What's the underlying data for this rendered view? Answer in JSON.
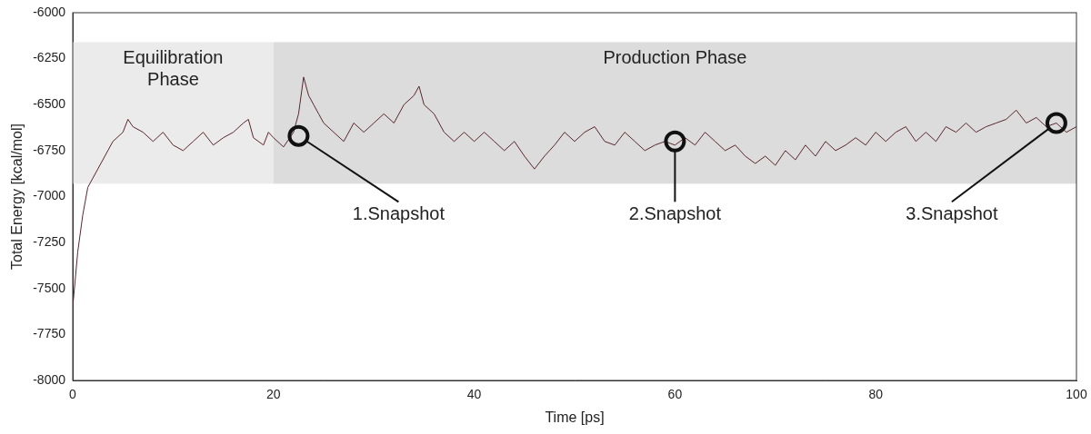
{
  "chart_data": {
    "type": "line",
    "x_label": "Time [ps]",
    "y_label": "Total Energy [kcal/mol]",
    "color": "#5a2630",
    "grid": false,
    "xlim": [
      0,
      100
    ],
    "xticks": [
      0,
      20,
      40,
      60,
      80,
      100
    ],
    "ylim": [
      -8000,
      -6000
    ],
    "yticks": [
      -8000,
      -7750,
      -7500,
      -7250,
      -7000,
      -6750,
      -6500,
      -6250,
      -6000
    ],
    "x": [
      0,
      0.5,
      1,
      1.5,
      2,
      2.5,
      3,
      3.5,
      4,
      5,
      5.5,
      6,
      7,
      8,
      9,
      10,
      11,
      12,
      13,
      14,
      15,
      16,
      17,
      17.5,
      18,
      19,
      19.5,
      20,
      21,
      22,
      22.5,
      23,
      23.5,
      24,
      24.5,
      25,
      26,
      27,
      28,
      29,
      30,
      31,
      32,
      33,
      34,
      34.5,
      35,
      36,
      37,
      38,
      39,
      40,
      41,
      42,
      43,
      44,
      45,
      46,
      47,
      48,
      49,
      50,
      51,
      52,
      53,
      54,
      55,
      56,
      57,
      58,
      59,
      60,
      61,
      62,
      63,
      64,
      65,
      66,
      67,
      68,
      69,
      70,
      71,
      72,
      73,
      74,
      75,
      76,
      77,
      78,
      79,
      80,
      81,
      82,
      83,
      84,
      85,
      86,
      87,
      88,
      89,
      90,
      91,
      92,
      93,
      94,
      95,
      96,
      97,
      98,
      99,
      100
    ],
    "values": [
      -7600,
      -7300,
      -7100,
      -6950,
      -6900,
      -6850,
      -6800,
      -6750,
      -6700,
      -6650,
      -6580,
      -6620,
      -6650,
      -6700,
      -6650,
      -6720,
      -6750,
      -6700,
      -6650,
      -6720,
      -6680,
      -6650,
      -6600,
      -6580,
      -6680,
      -6720,
      -6650,
      -6680,
      -6730,
      -6650,
      -6550,
      -6350,
      -6450,
      -6500,
      -6550,
      -6600,
      -6650,
      -6700,
      -6600,
      -6650,
      -6600,
      -6550,
      -6600,
      -6500,
      -6450,
      -6400,
      -6500,
      -6550,
      -6650,
      -6700,
      -6650,
      -6700,
      -6650,
      -6700,
      -6750,
      -6700,
      -6780,
      -6850,
      -6780,
      -6720,
      -6650,
      -6700,
      -6650,
      -6620,
      -6700,
      -6720,
      -6650,
      -6700,
      -6750,
      -6720,
      -6700,
      -6720,
      -6680,
      -6720,
      -6650,
      -6700,
      -6750,
      -6720,
      -6780,
      -6820,
      -6780,
      -6830,
      -6750,
      -6800,
      -6720,
      -6780,
      -6700,
      -6750,
      -6720,
      -6680,
      -6720,
      -6650,
      -6700,
      -6650,
      -6620,
      -6700,
      -6650,
      -6700,
      -6620,
      -6650,
      -6600,
      -6650,
      -6620,
      -6600,
      -6580,
      -6530,
      -6600,
      -6570,
      -6620,
      -6600,
      -6650,
      -6620
    ],
    "regions": [
      {
        "label": "Equilibration Phase",
        "x": [
          0,
          20
        ],
        "y": [
          -6930,
          -6160
        ],
        "color": "#ebebeb"
      },
      {
        "label": "Production Phase",
        "x": [
          20,
          100
        ],
        "y": [
          -6930,
          -6160
        ],
        "color": "#dcdcdc"
      }
    ],
    "annotations": [
      {
        "label": "1.Snapshot",
        "x": 22.5,
        "y": -6670
      },
      {
        "label": "2.Snapshot",
        "x": 60,
        "y": -6700
      },
      {
        "label": "3.Snapshot",
        "x": 98,
        "y": -6600
      }
    ]
  }
}
